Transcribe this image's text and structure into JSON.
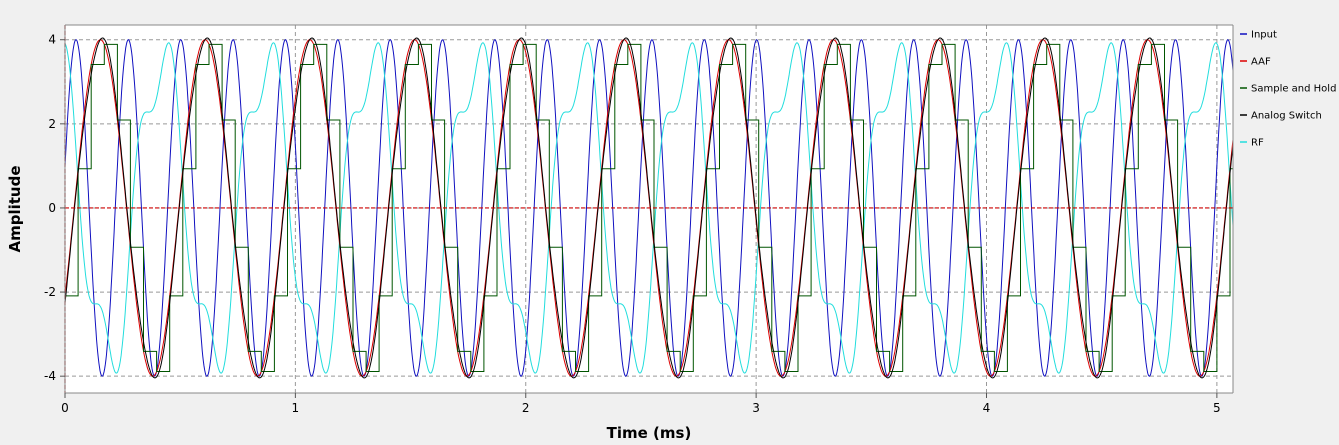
{
  "chart_data": {
    "type": "line",
    "xlabel": "Time (ms)",
    "ylabel": "Amplitude",
    "xlim": [
      0,
      5.07
    ],
    "ylim": [
      -4.4,
      4.35
    ],
    "xticks": [
      0,
      1,
      2,
      3,
      4,
      5
    ],
    "yticks": [
      -4,
      -2,
      0,
      2,
      4
    ],
    "grid": true,
    "legend_position": "right",
    "markers": {
      "vertical_x": 0,
      "horizontal_y": 0,
      "color": "#cc0000"
    },
    "series": [
      {
        "name": "Input",
        "color": "#1010c0",
        "amplitude": 4,
        "frequency_khz": 4.4,
        "description": "sine"
      },
      {
        "name": "AAF",
        "color": "#dd0000",
        "amplitude": 4,
        "frequency_khz": 2.2,
        "description": "filtered sine"
      },
      {
        "name": "Sample and Hold",
        "color": "#005500",
        "amplitude": 4,
        "frequency_khz": 2.2,
        "description": "stepped"
      },
      {
        "name": "Analog Switch",
        "color": "#000000",
        "amplitude": 4,
        "frequency_khz": 2.2,
        "description": "follows AAF"
      },
      {
        "name": "RF",
        "color": "#22dddd",
        "amplitude": 4.2,
        "frequency_khz": 2.2,
        "description": "ripple"
      }
    ]
  }
}
